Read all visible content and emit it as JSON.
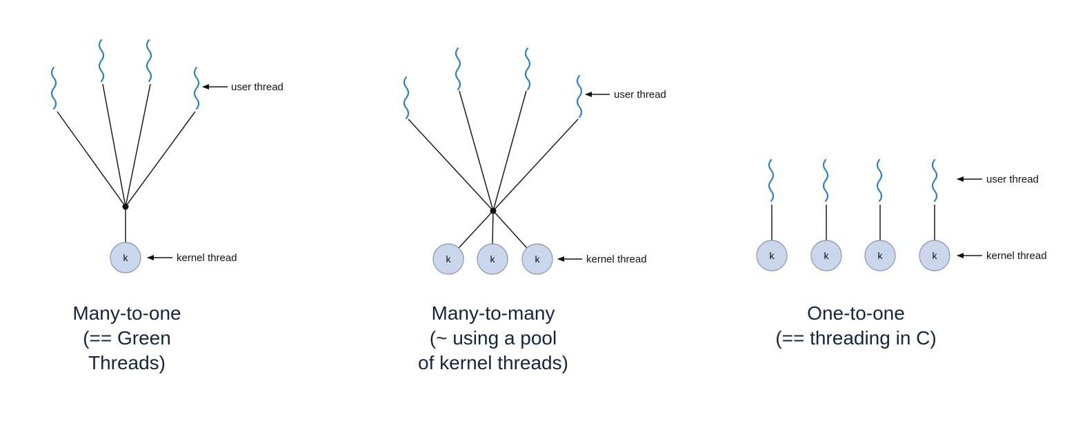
{
  "kernel_label": "k",
  "models": [
    {
      "id": "many-to-one",
      "user_label": "user thread",
      "kernel_label_text": "kernel thread",
      "caption": [
        "Many-to-one",
        "(== Green",
        "Threads)"
      ]
    },
    {
      "id": "many-to-many",
      "user_label": "user thread",
      "kernel_label_text": "kernel thread",
      "caption": [
        "Many-to-many",
        "(~ using a pool",
        "of kernel threads)"
      ]
    },
    {
      "id": "one-to-one",
      "user_label": "user thread",
      "kernel_label_text": "kernel thread",
      "caption": [
        "One-to-one",
        "(== threading in C)"
      ]
    }
  ]
}
